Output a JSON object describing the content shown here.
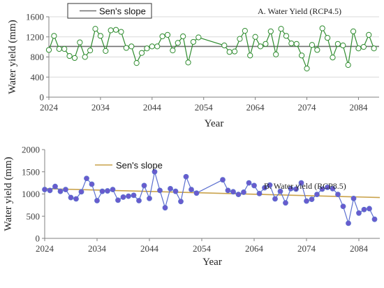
{
  "colors": {
    "a_series": "#2e8b2e",
    "a_marker_fill": "#ffffff",
    "a_trend": "#707070",
    "b_series": "#5b6fcf",
    "b_marker_fill": "#6a5acd",
    "b_trend": "#c9a24a",
    "grid": "#d9d9d9",
    "axis": "#808080"
  },
  "chart_data": [
    {
      "type": "line",
      "annotation": "A. Water Yield (RCP4.5)",
      "xlabel": "Year",
      "ylabel": "Water yield (mm)",
      "xlim": [
        2024,
        2088
      ],
      "ylim": [
        0,
        1600
      ],
      "xticks": [
        2024,
        2034,
        2044,
        2054,
        2064,
        2074,
        2084
      ],
      "yticks": [
        0,
        400,
        800,
        1200,
        1600
      ],
      "grid": "horizontal",
      "legend": {
        "position": "top-left",
        "boxed": true
      },
      "series": [
        {
          "x": [
            2024,
            2025,
            2026,
            2027,
            2028,
            2029,
            2030,
            2031,
            2032,
            2033,
            2034,
            2035,
            2036,
            2037,
            2038,
            2039,
            2040,
            2041,
            2042,
            2043,
            2044,
            2045,
            2046,
            2047,
            2048,
            2049,
            2050,
            2051,
            2052,
            2053,
            2058,
            2059,
            2060,
            2061,
            2062,
            2063,
            2064,
            2065,
            2066,
            2067,
            2068,
            2069,
            2070,
            2071,
            2072,
            2073,
            2074,
            2075,
            2076,
            2077,
            2078,
            2079,
            2080,
            2081,
            2082,
            2083,
            2084,
            2085,
            2086,
            2087
          ],
          "values": [
            940,
            1220,
            960,
            960,
            820,
            780,
            1090,
            800,
            930,
            1360,
            1220,
            920,
            1330,
            1340,
            1300,
            980,
            1010,
            680,
            880,
            970,
            1010,
            1010,
            1210,
            1240,
            930,
            1080,
            1210,
            690,
            1100,
            1190,
            1030,
            900,
            910,
            1160,
            1320,
            830,
            1200,
            1010,
            1060,
            1310,
            850,
            1360,
            1220,
            1070,
            1060,
            830,
            570,
            1040,
            940,
            1370,
            1180,
            790,
            1060,
            1030,
            640,
            1310,
            970,
            1000,
            1240,
            970
          ]
        }
      ],
      "trend": {
        "name": "Sen's slope",
        "start": [
          2024,
          1010
        ],
        "end": [
          2088,
          1010
        ]
      }
    },
    {
      "type": "line",
      "annotation": "B. Water yield (RCP8.5)",
      "xlabel": "Year",
      "ylabel": "Water yield (mm)",
      "xlim": [
        2024,
        2088
      ],
      "ylim": [
        0,
        2000
      ],
      "xticks": [
        2024,
        2034,
        2044,
        2054,
        2064,
        2074,
        2084
      ],
      "yticks": [
        0,
        500,
        1000,
        1500,
        2000
      ],
      "grid": "none",
      "legend": {
        "position": "top-left",
        "boxed": false
      },
      "series": [
        {
          "x": [
            2024,
            2025,
            2026,
            2027,
            2028,
            2029,
            2030,
            2031,
            2032,
            2033,
            2034,
            2035,
            2036,
            2037,
            2038,
            2039,
            2040,
            2041,
            2042,
            2043,
            2044,
            2045,
            2046,
            2047,
            2048,
            2049,
            2050,
            2051,
            2052,
            2053,
            2058,
            2059,
            2060,
            2061,
            2062,
            2063,
            2064,
            2065,
            2066,
            2067,
            2068,
            2069,
            2070,
            2071,
            2072,
            2073,
            2074,
            2075,
            2076,
            2077,
            2078,
            2079,
            2080,
            2081,
            2082,
            2083,
            2084,
            2085,
            2086,
            2087
          ],
          "values": [
            1100,
            1080,
            1170,
            1060,
            1100,
            920,
            890,
            1050,
            1350,
            1220,
            850,
            1060,
            1070,
            1100,
            860,
            930,
            950,
            970,
            850,
            1190,
            900,
            1500,
            1080,
            690,
            1120,
            1060,
            830,
            1390,
            1100,
            1020,
            1320,
            1080,
            1050,
            990,
            1040,
            1250,
            1190,
            1010,
            1140,
            1200,
            890,
            1060,
            800,
            1120,
            1110,
            1250,
            840,
            880,
            990,
            1110,
            1150,
            1120,
            990,
            720,
            340,
            900,
            570,
            650,
            670,
            430
          ]
        }
      ],
      "trend": {
        "name": "Sen's slope",
        "start": [
          2024,
          1120
        ],
        "end": [
          2088,
          920
        ]
      }
    }
  ]
}
